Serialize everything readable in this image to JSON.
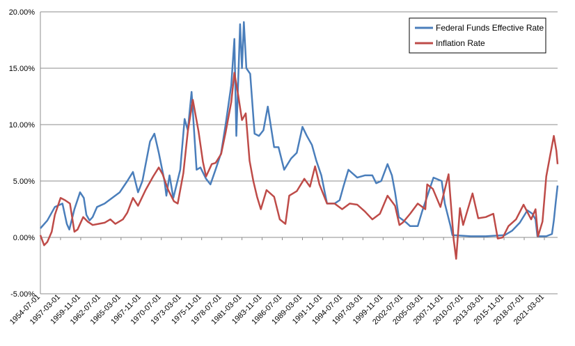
{
  "chart_data": {
    "type": "line",
    "title": "",
    "xlabel": "",
    "ylabel": "",
    "ylim": [
      -5,
      20
    ],
    "y_ticks": [
      -5,
      0,
      5,
      10,
      15,
      20
    ],
    "y_tick_labels": [
      "-5.00%",
      "0.00%",
      "5.00%",
      "10.00%",
      "15.00%",
      "20.00%"
    ],
    "x_range": [
      "1954-07-01",
      "2022-12-01"
    ],
    "x_tick_labels": [
      "1954-07-01",
      "1957-03-01",
      "1959-11-01",
      "1962-07-01",
      "1965-03-01",
      "1967-11-01",
      "1970-07-01",
      "1973-03-01",
      "1975-11-01",
      "1978-07-01",
      "1981-03-01",
      "1983-11-01",
      "1986-07-01",
      "1989-03-01",
      "1991-11-01",
      "1994-07-01",
      "1997-03-01",
      "1999-11-01",
      "2002-07-01",
      "2005-03-01",
      "2007-11-01",
      "2010-07-01",
      "2013-03-01",
      "2015-11-01",
      "2018-07-01",
      "2021-03-01"
    ],
    "grid": true,
    "legend_position": "top-right",
    "series": [
      {
        "name": "Federal Funds Effective Rate",
        "color": "#4a7ebb",
        "x": [
          "1954-07-01",
          "1955-06-01",
          "1956-06-01",
          "1957-06-01",
          "1958-01-01",
          "1958-05-01",
          "1959-01-01",
          "1959-10-01",
          "1960-04-01",
          "1960-08-01",
          "1961-01-01",
          "1961-06-01",
          "1962-01-01",
          "1963-01-01",
          "1964-01-01",
          "1965-01-01",
          "1966-01-01",
          "1966-10-01",
          "1967-06-01",
          "1968-01-01",
          "1969-01-01",
          "1969-08-01",
          "1970-03-01",
          "1970-12-01",
          "1971-03-01",
          "1971-08-01",
          "1972-02-01",
          "1973-01-01",
          "1973-08-01",
          "1974-01-01",
          "1974-07-01",
          "1975-03-01",
          "1975-09-01",
          "1976-06-01",
          "1977-01-01",
          "1977-09-01",
          "1978-06-01",
          "1979-01-01",
          "1979-10-01",
          "1980-03-01",
          "1980-06-01",
          "1980-12-01",
          "1981-03-01",
          "1981-06-01",
          "1981-10-01",
          "1982-04-01",
          "1982-11-01",
          "1983-06-01",
          "1984-01-01",
          "1984-08-01",
          "1985-06-01",
          "1986-01-01",
          "1986-10-01",
          "1987-09-01",
          "1988-06-01",
          "1989-03-01",
          "1989-10-01",
          "1990-06-01",
          "1991-01-01",
          "1991-09-01",
          "1992-06-01",
          "1993-06-01",
          "1994-02-01",
          "1994-08-01",
          "1995-04-01",
          "1996-06-01",
          "1997-06-01",
          "1998-06-01",
          "1998-12-01",
          "1999-08-01",
          "2000-06-01",
          "2001-01-01",
          "2001-06-01",
          "2001-12-01",
          "2002-12-01",
          "2003-06-01",
          "2004-06-01",
          "2005-01-01",
          "2005-10-01",
          "2006-07-01",
          "2007-08-01",
          "2008-01-01",
          "2008-10-01",
          "2009-01-01",
          "2011-06-01",
          "2013-06-01",
          "2015-12-01",
          "2016-12-01",
          "2017-12-01",
          "2018-12-01",
          "2019-08-01",
          "2020-01-01",
          "2020-04-01",
          "2021-06-01",
          "2022-03-01",
          "2022-06-01",
          "2022-09-01",
          "2022-12-01"
        ],
        "y": [
          0.8,
          1.5,
          2.7,
          3.0,
          1.2,
          0.7,
          2.5,
          4.0,
          3.5,
          2.0,
          1.5,
          1.8,
          2.7,
          3.0,
          3.5,
          4.0,
          5.0,
          5.8,
          4.0,
          5.0,
          8.5,
          9.2,
          7.5,
          5.0,
          3.7,
          5.5,
          3.5,
          6.0,
          10.5,
          9.5,
          12.9,
          6.0,
          6.2,
          5.2,
          4.7,
          6.0,
          7.5,
          10.0,
          13.5,
          17.6,
          9.0,
          18.9,
          15.0,
          19.1,
          15.0,
          14.5,
          9.2,
          9.0,
          9.5,
          11.6,
          8.0,
          8.0,
          6.0,
          7.0,
          7.5,
          9.8,
          9.0,
          8.2,
          6.8,
          5.5,
          3.0,
          3.0,
          3.3,
          4.5,
          6.0,
          5.3,
          5.5,
          5.5,
          4.8,
          5.0,
          6.5,
          5.5,
          4.0,
          1.8,
          1.3,
          1.0,
          1.0,
          2.3,
          3.8,
          5.3,
          5.0,
          3.0,
          1.0,
          0.2,
          0.1,
          0.1,
          0.2,
          0.6,
          1.3,
          2.4,
          2.1,
          1.6,
          0.1,
          0.1,
          0.3,
          1.5,
          3.1,
          4.6
        ]
      },
      {
        "name": "Inflation Rate",
        "color": "#be4b48",
        "x": [
          "1954-07-01",
          "1955-01-01",
          "1955-06-01",
          "1956-01-01",
          "1956-06-01",
          "1957-03-01",
          "1957-10-01",
          "1958-06-01",
          "1959-01-01",
          "1959-06-01",
          "1960-03-01",
          "1960-10-01",
          "1961-06-01",
          "1962-03-01",
          "1963-01-01",
          "1963-10-01",
          "1964-06-01",
          "1965-06-01",
          "1966-01-01",
          "1966-10-01",
          "1967-06-01",
          "1968-06-01",
          "1969-06-01",
          "1970-03-01",
          "1970-09-01",
          "1971-06-01",
          "1972-03-01",
          "1972-09-01",
          "1973-06-01",
          "1974-01-01",
          "1974-09-01",
          "1975-06-01",
          "1976-01-01",
          "1976-06-01",
          "1977-03-01",
          "1977-09-01",
          "1978-06-01",
          "1979-01-01",
          "1979-10-01",
          "1980-03-01",
          "1980-09-01",
          "1981-03-01",
          "1981-09-01",
          "1982-03-01",
          "1982-09-01",
          "1983-03-01",
          "1983-09-01",
          "1984-06-01",
          "1985-06-01",
          "1986-03-01",
          "1986-12-01",
          "1987-06-01",
          "1988-06-01",
          "1989-06-01",
          "1990-03-01",
          "1990-11-01",
          "1991-06-01",
          "1992-06-01",
          "1993-06-01",
          "1994-06-01",
          "1995-06-01",
          "1996-06-01",
          "1997-06-01",
          "1998-06-01",
          "1999-06-01",
          "2000-06-01",
          "2001-06-01",
          "2002-01-01",
          "2002-06-01",
          "2003-06-01",
          "2004-06-01",
          "2005-06-01",
          "2005-09-01",
          "2006-06-01",
          "2007-06-01",
          "2008-07-01",
          "2009-03-01",
          "2009-07-01",
          "2010-01-01",
          "2010-06-01",
          "2011-09-01",
          "2012-06-01",
          "2013-06-01",
          "2014-06-01",
          "2015-01-01",
          "2015-09-01",
          "2016-06-01",
          "2017-06-01",
          "2018-06-01",
          "2019-06-01",
          "2020-01-01",
          "2020-05-01",
          "2020-12-01",
          "2021-06-01",
          "2022-01-01",
          "2022-06-01",
          "2022-10-01",
          "2022-12-01"
        ],
        "y": [
          0.2,
          -0.7,
          -0.4,
          0.5,
          2.0,
          3.5,
          3.3,
          3.0,
          0.5,
          0.7,
          1.8,
          1.4,
          1.1,
          1.2,
          1.3,
          1.6,
          1.2,
          1.6,
          2.2,
          3.5,
          2.8,
          4.2,
          5.4,
          6.2,
          5.6,
          4.2,
          3.2,
          3.0,
          5.7,
          9.4,
          12.2,
          9.4,
          6.7,
          5.4,
          6.5,
          6.6,
          7.4,
          9.3,
          12.0,
          14.6,
          12.6,
          10.4,
          11.0,
          6.8,
          5.0,
          3.6,
          2.5,
          4.2,
          3.6,
          1.6,
          1.2,
          3.7,
          4.1,
          5.2,
          4.5,
          6.3,
          4.7,
          3.0,
          3.0,
          2.5,
          3.0,
          2.9,
          2.3,
          1.6,
          2.1,
          3.7,
          2.8,
          1.1,
          1.3,
          2.1,
          3.0,
          2.5,
          4.7,
          4.3,
          2.7,
          5.6,
          -0.2,
          -1.9,
          2.6,
          1.1,
          3.9,
          1.7,
          1.8,
          2.1,
          -0.1,
          0.0,
          1.0,
          1.6,
          2.9,
          1.6,
          2.5,
          0.1,
          1.4,
          5.4,
          7.5,
          9.0,
          7.7,
          6.5
        ]
      }
    ]
  }
}
